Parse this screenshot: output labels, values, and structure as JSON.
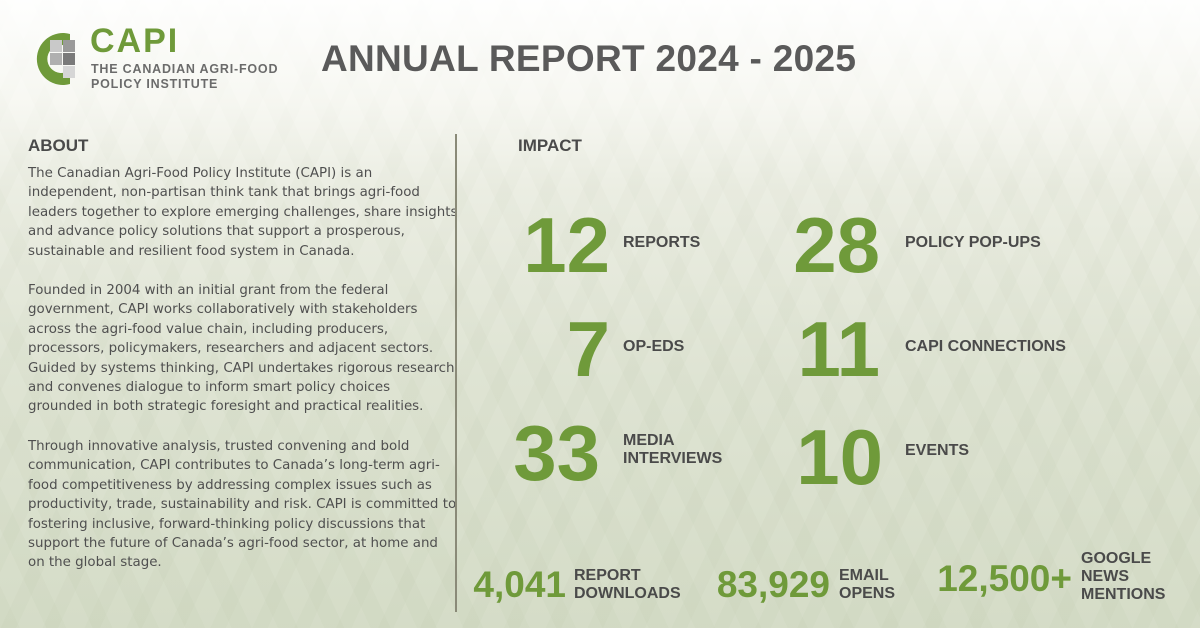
{
  "colors": {
    "brand_green": "#6f9a3a",
    "text_dark": "#4a4a4a",
    "logo_gray": "#6b6b6b"
  },
  "logo": {
    "icon": "capi-logo-mark-icon",
    "word": "CAPI",
    "sub_line1": "THE CANADIAN AGRI-FOOD",
    "sub_line2": "POLICY INSTITUTE"
  },
  "title": "ANNUAL REPORT 2024 - 2025",
  "about": {
    "heading": "ABOUT",
    "paragraphs": [
      "The Canadian Agri-Food Policy Institute (CAPI) is an independent, non-partisan think tank that brings agri-food leaders together to explore emerging challenges, share insights and advance policy solutions that support a prosperous, sustainable and resilient food system in Canada.",
      "Founded in 2004 with an initial grant from the federal government, CAPI works collaboratively with stakeholders across the agri-food value chain, including producers, processors, policymakers, researchers and adjacent sectors. Guided by systems thinking, CAPI undertakes rigorous research and convenes dialogue to inform smart policy choices grounded in both strategic foresight and practical realities.",
      "Through innovative analysis, trusted convening and bold communication, CAPI contributes to Canada’s long-term agri-food competitiveness by addressing complex issues such as productivity, trade, sustainability and risk. CAPI is committed to fostering inclusive, forward-thinking policy discussions that support the future of Canada’s agri-food sector, at home and on the global stage."
    ]
  },
  "impact": {
    "heading": "IMPACT",
    "stats": [
      {
        "value": "12",
        "label_line1": "REPORTS",
        "label_line2": ""
      },
      {
        "value": "28",
        "label_line1": "POLICY POP-UPS",
        "label_line2": ""
      },
      {
        "value": "7",
        "label_line1": "OP-EDS",
        "label_line2": ""
      },
      {
        "value": "11",
        "label_line1": "CAPI CONNECTIONS",
        "label_line2": ""
      },
      {
        "value": "33",
        "label_line1": "MEDIA",
        "label_line2": "INTERVIEWS"
      },
      {
        "value": "10",
        "label_line1": "EVENTS",
        "label_line2": ""
      }
    ],
    "reach": [
      {
        "value": "4,041",
        "label_line1": "REPORT",
        "label_line2": "DOWNLOADS",
        "label_line3": ""
      },
      {
        "value": "83,929",
        "label_line1": "EMAIL",
        "label_line2": "OPENS",
        "label_line3": ""
      },
      {
        "value": "12,500+",
        "label_line1": "GOOGLE",
        "label_line2": "NEWS",
        "label_line3": "MENTIONS"
      }
    ]
  }
}
